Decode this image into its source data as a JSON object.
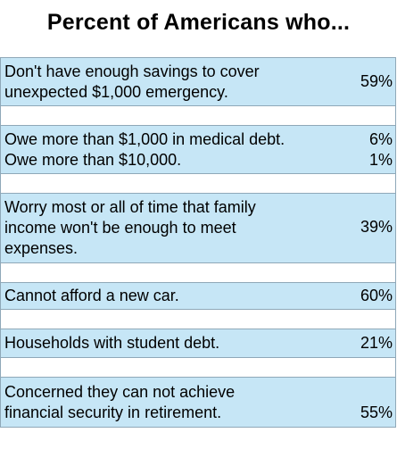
{
  "title": "Percent of Americans who...",
  "rows": [
    {
      "lines": [
        "Don't have enough savings to cover",
        "unexpected $1,000 emergency."
      ],
      "value": "59%"
    },
    {
      "lines": [
        "Owe more than $1,000 in medical debt."
      ],
      "value": "6%",
      "lines2": [
        "Owe more than $10,000."
      ],
      "value2": "1%"
    },
    {
      "lines": [
        "Worry most or all of time that family",
        "income won't be enough to meet",
        "expenses."
      ],
      "value": "39%"
    },
    {
      "lines": [
        "Cannot afford a new car."
      ],
      "value": "60%"
    },
    {
      "lines": [
        "Households with student debt."
      ],
      "value": "21%"
    },
    {
      "lines": [
        "Concerned they can not achieve",
        "financial security in retirement."
      ],
      "value": "55%"
    }
  ]
}
